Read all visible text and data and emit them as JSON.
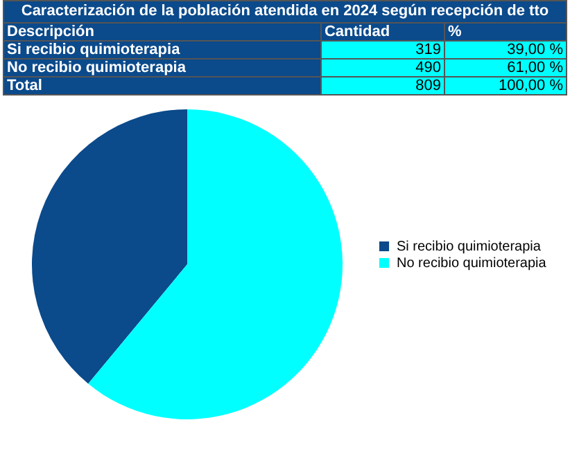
{
  "chart_data": {
    "type": "pie",
    "title": "Caracterización de la población atendida en 2024 según recepción de tto",
    "categories": [
      "Si recibio quimioterapia",
      "No recibio quimioterapia"
    ],
    "values": [
      39,
      61
    ],
    "colors": [
      "#0b4a8b",
      "#00ffff"
    ],
    "legend": "right",
    "annotations": [
      "Descripción",
      "Cantidad",
      "%",
      "319",
      "39,00 %",
      "490",
      "61,00 %",
      "Total",
      "809",
      "100,00 %"
    ]
  }
}
